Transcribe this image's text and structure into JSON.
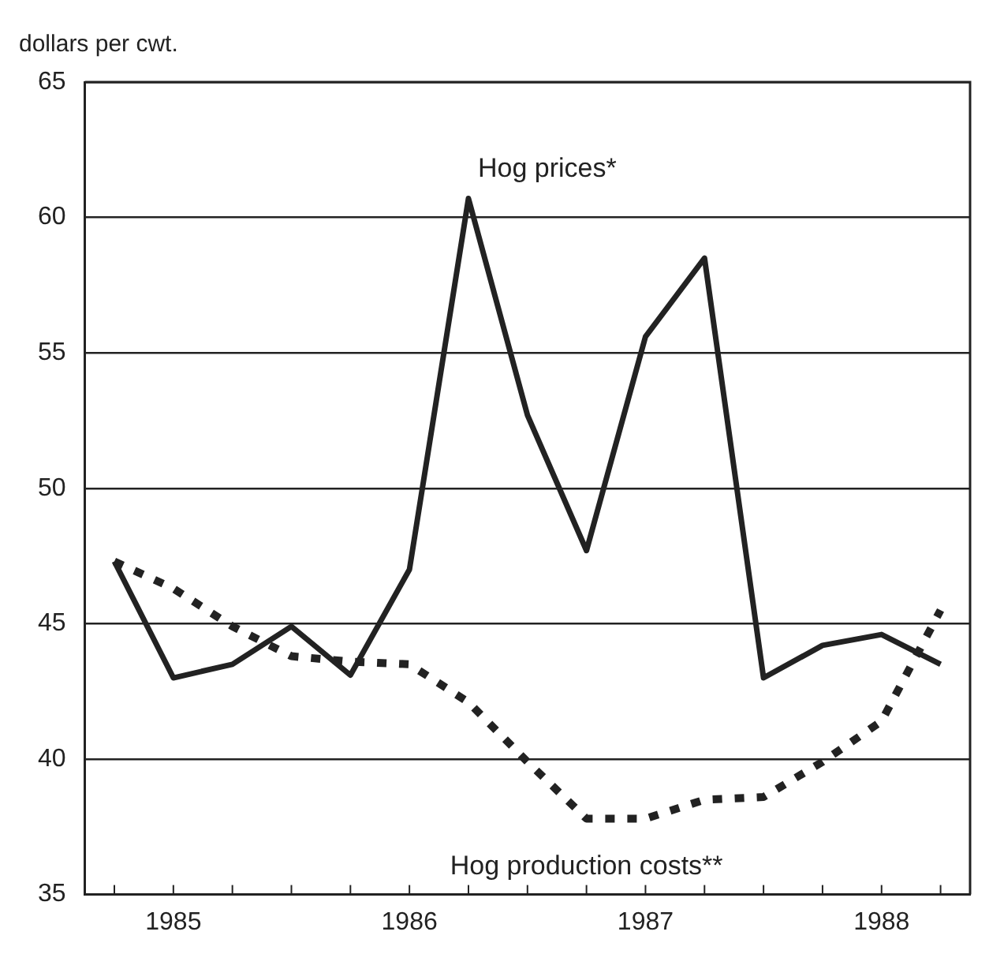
{
  "chart_data": {
    "type": "line",
    "ylabel": "dollars per cwt.",
    "categories": [
      null,
      "1985",
      null,
      null,
      null,
      "1986",
      null,
      null,
      null,
      "1987",
      null,
      null,
      null,
      "1988",
      null
    ],
    "series": [
      {
        "name": "Hog prices*",
        "color": "#222222",
        "line_style": "solid",
        "values": [
          47.3,
          43.0,
          43.5,
          44.9,
          43.1,
          47.0,
          60.7,
          52.7,
          47.7,
          55.6,
          58.5,
          43.0,
          44.2,
          44.6,
          43.5
        ]
      },
      {
        "name": "Hog production costs**",
        "color": "#222222",
        "line_style": "dotted",
        "values": [
          47.3,
          46.3,
          44.9,
          43.8,
          43.6,
          43.5,
          42.1,
          39.9,
          37.8,
          37.8,
          38.5,
          38.6,
          39.9,
          41.4,
          45.5
        ]
      }
    ],
    "ylim": [
      35,
      65
    ],
    "yticks": [
      35,
      40,
      45,
      50,
      55,
      60,
      65
    ],
    "grid": "y",
    "legend": false,
    "marker": "none"
  }
}
